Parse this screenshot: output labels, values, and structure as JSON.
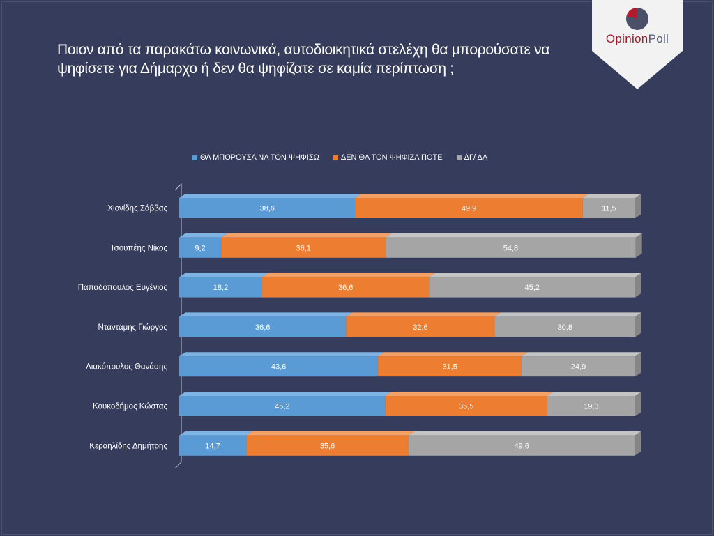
{
  "title": "Ποιον από τα παρακάτω κοινωνικά, αυτοδιοικητικά στελέχη θα μπορούσατε να ψηφίσετε για Δήμαρχο ή δεν θα ψηφίζατε σε καμία περίπτωση ;",
  "logo": {
    "opinion": "Opinion",
    "poll": "Poll",
    "icon": "pie-logo-icon"
  },
  "colors": {
    "background": "#353c5c",
    "series": [
      "#5b9bd5",
      "#ed7d31",
      "#a5a5a5"
    ]
  },
  "chart_data": {
    "type": "bar",
    "orientation": "horizontal",
    "stacked": true,
    "title": "",
    "xlabel": "",
    "ylabel": "",
    "xlim": [
      0,
      100
    ],
    "grid": false,
    "legend_position": "top",
    "categories": [
      "Χιονίδης Σάββας",
      "Τσουπέης Νίκος",
      "Παπαδόπουλος Ευγένιος",
      "Νταντάμης Γιώργος",
      "Λιακόπουλος Θανάσης",
      "Κουκοδήμος Κώστας",
      "Κεραηλίδης Δημήτρης"
    ],
    "series": [
      {
        "name": "ΘΑ ΜΠΟΡΟΥΣΑ ΝΑ ΤΟΝ ΨΗΦΙΣΩ",
        "values": [
          38.6,
          9.2,
          18.2,
          36.6,
          43.6,
          45.2,
          14.7
        ]
      },
      {
        "name": "ΔΕΝ ΘΑ ΤΟΝ ΨΗΦΙΖΑ ΠΟΤΕ",
        "values": [
          49.9,
          36.1,
          36.6,
          32.6,
          31.5,
          35.5,
          35.6
        ]
      },
      {
        "name": "ΔΓ/ ΔΑ",
        "values": [
          11.5,
          54.8,
          45.2,
          30.8,
          24.9,
          19.3,
          49.6
        ]
      }
    ],
    "value_labels": [
      [
        "38,6",
        "9,2",
        "18,2",
        "36,6",
        "43,6",
        "45,2",
        "14,7"
      ],
      [
        "49,9",
        "36,1",
        "36,6",
        "32,6",
        "31,5",
        "35,5",
        "35,6"
      ],
      [
        "11,5",
        "54,8",
        "45,2",
        "30,8",
        "24,9",
        "19,3",
        "49,6"
      ]
    ]
  }
}
